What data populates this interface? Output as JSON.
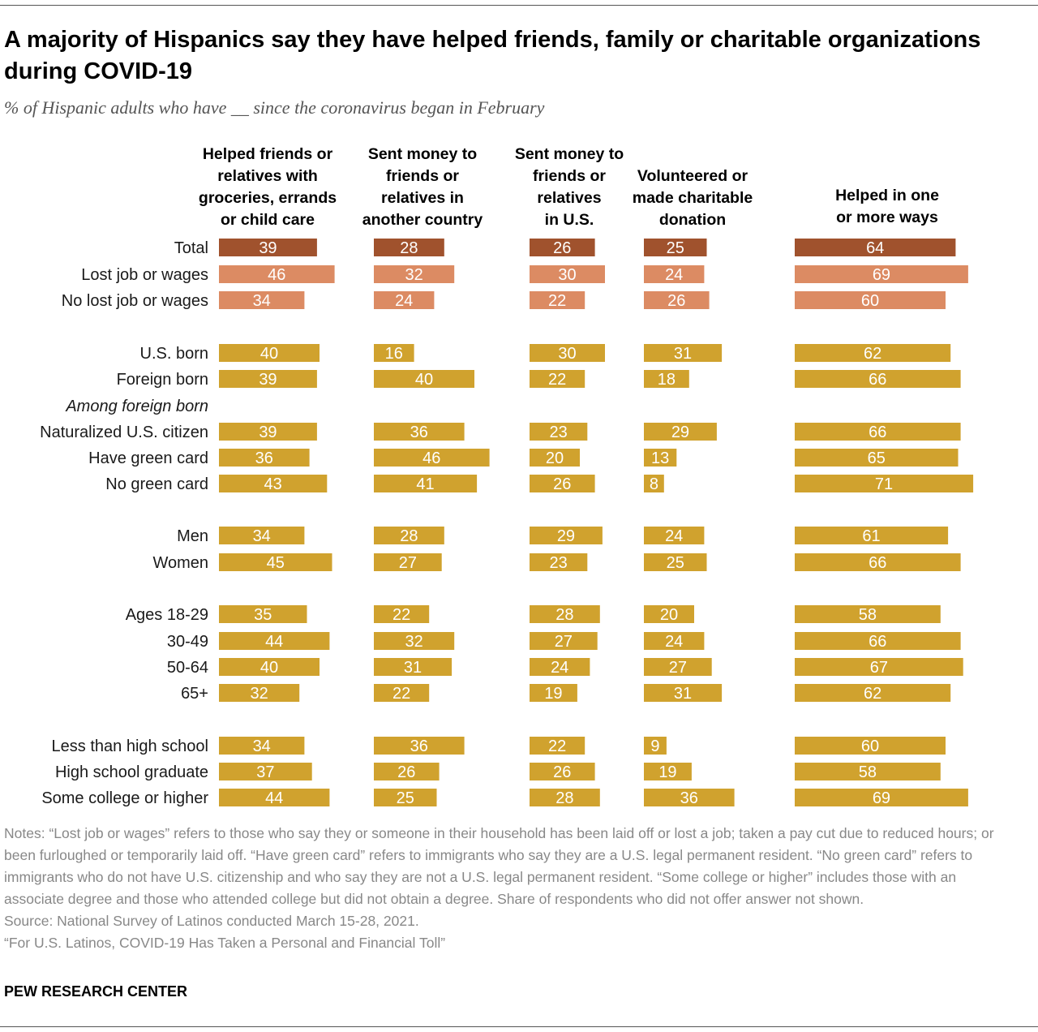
{
  "header": {
    "title": "A majority of Hispanics say they have helped friends, family or charitable organizations during COVID-19",
    "subtitle": "% of Hispanic adults who have __ since the coronavirus began in February"
  },
  "chart_data": {
    "type": "bar",
    "orientation": "horizontal",
    "columns": [
      {
        "name": "Helped friends or relatives with groceries, errands or child care",
        "lines": [
          "Helped friends or",
          "relatives with",
          "groceries, errands",
          "or child care"
        ]
      },
      {
        "name": "Sent money to friends or relatives in another country",
        "lines": [
          "Sent money to",
          "friends or",
          "relatives in",
          "another country"
        ]
      },
      {
        "name": "Sent money to friends or relatives in U.S.",
        "lines": [
          "Sent money to",
          "friends or",
          "relatives",
          "in U.S."
        ]
      },
      {
        "name": "Volunteered or made charitable donation",
        "lines": [
          "Volunteered or",
          "made charitable",
          "donation"
        ]
      },
      {
        "name": "Helped in one or more ways",
        "lines": [
          "Helped in one",
          "or more ways"
        ]
      }
    ],
    "rows": [
      {
        "label": "Total",
        "values": [
          39,
          28,
          26,
          25,
          64
        ],
        "color": "#a0522d"
      },
      {
        "label": "Lost job or wages",
        "values": [
          46,
          32,
          30,
          24,
          69
        ],
        "color": "#dc8b63"
      },
      {
        "label": "No lost job or wages",
        "values": [
          34,
          24,
          22,
          26,
          60
        ],
        "color": "#dc8b63"
      },
      {
        "label": "U.S. born",
        "values": [
          40,
          16,
          30,
          31,
          62
        ],
        "color": "#d0a22e"
      },
      {
        "label": "Foreign born",
        "values": [
          39,
          40,
          22,
          18,
          66
        ],
        "color": "#d0a22e"
      },
      {
        "label": "Among foreign born",
        "italic": true
      },
      {
        "label": "Naturalized U.S. citizen",
        "values": [
          39,
          36,
          23,
          29,
          66
        ],
        "color": "#d0a22e"
      },
      {
        "label": "Have green card",
        "values": [
          36,
          46,
          20,
          13,
          65
        ],
        "color": "#d0a22e"
      },
      {
        "label": "No green card",
        "values": [
          43,
          41,
          26,
          8,
          71
        ],
        "color": "#d0a22e"
      },
      {
        "label": "Men",
        "values": [
          34,
          28,
          29,
          24,
          61
        ],
        "color": "#d0a22e"
      },
      {
        "label": "Women",
        "values": [
          45,
          27,
          23,
          25,
          66
        ],
        "color": "#d0a22e"
      },
      {
        "label": "Ages 18-29",
        "values": [
          35,
          22,
          28,
          20,
          58
        ],
        "color": "#d0a22e"
      },
      {
        "label": "30-49",
        "values": [
          44,
          32,
          27,
          24,
          66
        ],
        "color": "#d0a22e"
      },
      {
        "label": "50-64",
        "values": [
          40,
          31,
          24,
          27,
          67
        ],
        "color": "#d0a22e"
      },
      {
        "label": "65+",
        "values": [
          32,
          22,
          19,
          31,
          62
        ],
        "color": "#d0a22e"
      },
      {
        "label": "Less than high school",
        "values": [
          34,
          36,
          22,
          9,
          60
        ],
        "color": "#d0a22e"
      },
      {
        "label": "High school graduate",
        "values": [
          37,
          26,
          26,
          19,
          58
        ],
        "color": "#d0a22e"
      },
      {
        "label": "Some college or higher",
        "values": [
          44,
          25,
          28,
          36,
          69
        ],
        "color": "#d0a22e"
      }
    ],
    "colors": {
      "total": "#a0522d",
      "job": "#dc8b63",
      "group": "#d0a22e"
    }
  },
  "footer": {
    "notes": "Notes: “Lost job or wages” refers to those who say they or someone in their household has been laid off or lost a job; taken a pay cut due to reduced hours; or been furloughed or temporarily laid off. “Have green card” refers to immigrants who say they are a U.S. legal permanent resident. “No green card” refers to immigrants who do not have U.S. citizenship and who say they are not a U.S. legal permanent resident. “Some college or higher” includes those with an associate degree and those who attended college but did not obtain a degree. Share of respondents who did not offer answer not shown.",
    "source": "Source: National Survey of Latinos conducted March 15-28, 2021.",
    "report": "“For U.S. Latinos, COVID-19 Has Taken a Personal and Financial Toll”",
    "brand": "PEW RESEARCH CENTER"
  }
}
